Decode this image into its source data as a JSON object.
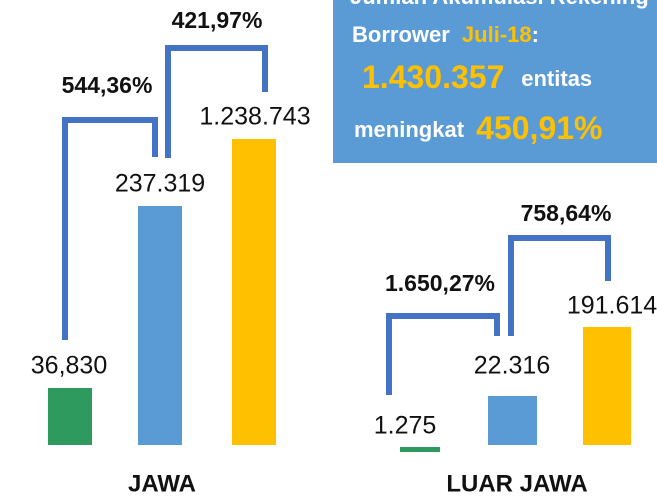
{
  "info_box": {
    "line_1": "Jumlah Akumulasi Rekening",
    "borrower": "Borrower",
    "period": "Juli-18",
    "colon": ":",
    "total": "1.430.357",
    "unit": "entitas",
    "increase_word": "meningkat",
    "increase": "450,91%"
  },
  "groups": [
    {
      "name": "JAWA",
      "bars": [
        "36,830",
        "237.319",
        "1.238.743"
      ],
      "growth": [
        "544,36%",
        "421,97%"
      ]
    },
    {
      "name": "LUAR JAWA",
      "bars": [
        "1.275",
        "22.316",
        "191.614"
      ],
      "growth": [
        "1.650,27%",
        "758,64%"
      ]
    }
  ]
}
